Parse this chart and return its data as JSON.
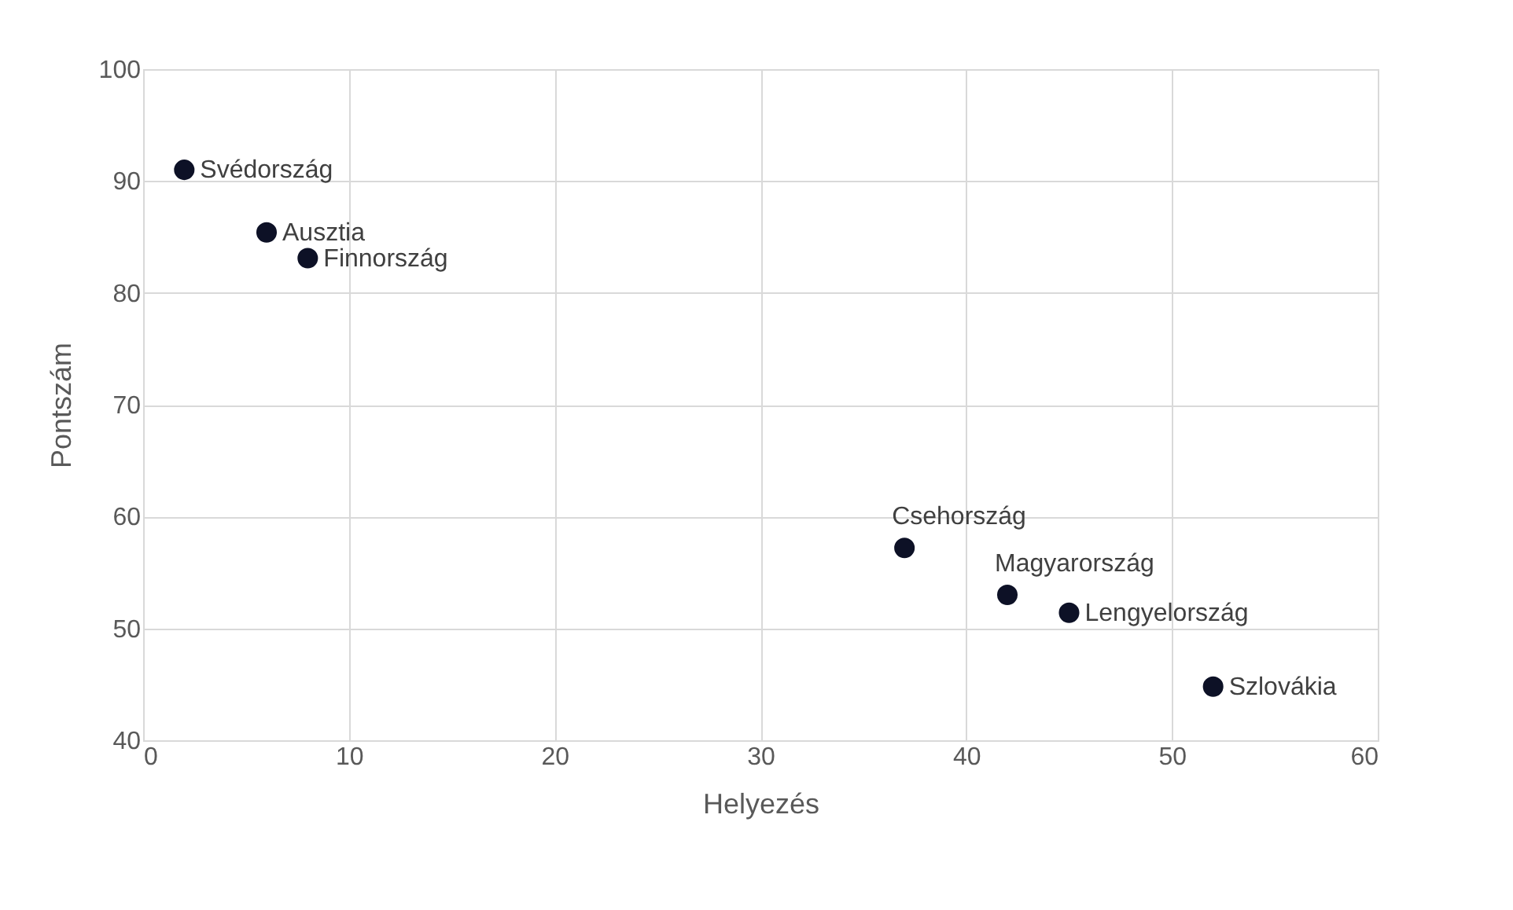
{
  "chart_data": {
    "type": "scatter",
    "xlabel": "Helyezés",
    "ylabel": "Pontszám",
    "x": [
      2,
      6,
      8,
      37,
      42,
      45,
      52
    ],
    "values": [
      91.0,
      85.4,
      83.1,
      57.2,
      53.0,
      51.4,
      44.8
    ],
    "color": "#0d1126",
    "marker": "circle",
    "grid": true,
    "xlim": [
      0,
      60
    ],
    "xticks": [
      0,
      10,
      20,
      30,
      40,
      50,
      60
    ],
    "ylim": [
      40,
      100
    ],
    "yticks": [
      40,
      50,
      60,
      70,
      80,
      90,
      100
    ],
    "annotations": [
      {
        "text": "Svédország",
        "x": 2,
        "y": 91.0
      },
      {
        "text": "Ausztia",
        "x": 6,
        "y": 85.4
      },
      {
        "text": "Finnország",
        "x": 8,
        "y": 83.1
      },
      {
        "text": "Csehország",
        "x": 37,
        "y": 57.2
      },
      {
        "text": "Magyarország",
        "x": 42,
        "y": 53.0
      },
      {
        "text": "Lengyelország",
        "x": 45,
        "y": 51.4
      },
      {
        "text": "Szlovákia",
        "x": 52,
        "y": 44.8
      }
    ]
  }
}
